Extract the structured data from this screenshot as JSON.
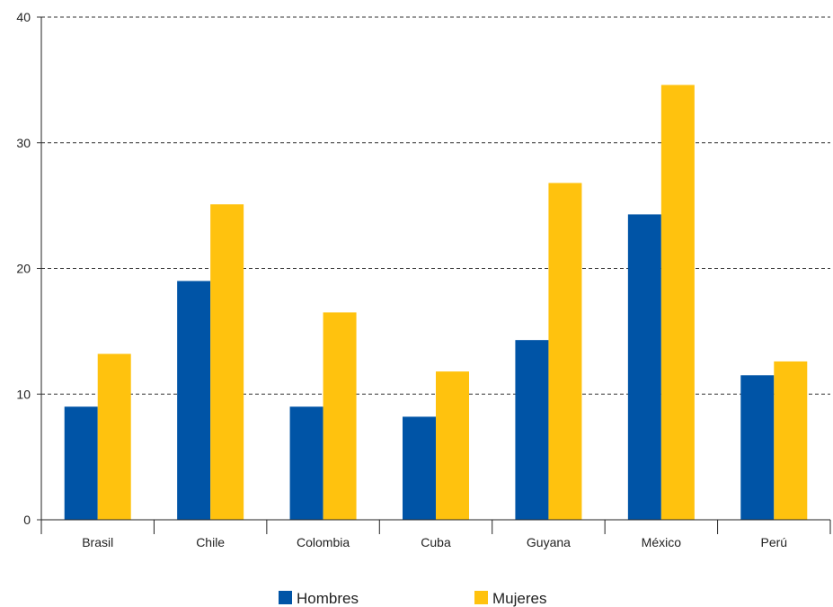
{
  "chart_data": {
    "type": "bar",
    "categories": [
      "Brasil",
      "Chile",
      "Colombia",
      "Cuba",
      "Guyana",
      "México",
      "Perú"
    ],
    "series": [
      {
        "name": "Hombres",
        "color": "#0054a6",
        "values": [
          9.0,
          19.0,
          9.0,
          8.2,
          14.3,
          24.3,
          11.5
        ]
      },
      {
        "name": "Mujeres",
        "color": "#ffc20e",
        "values": [
          13.2,
          25.1,
          16.5,
          11.8,
          26.8,
          34.6,
          12.6
        ]
      }
    ],
    "ylim": [
      0,
      40
    ],
    "yticks": [
      0,
      10,
      20,
      30,
      40
    ],
    "grid": true,
    "legend": "bottom",
    "title": "",
    "xlabel": "",
    "ylabel": ""
  }
}
